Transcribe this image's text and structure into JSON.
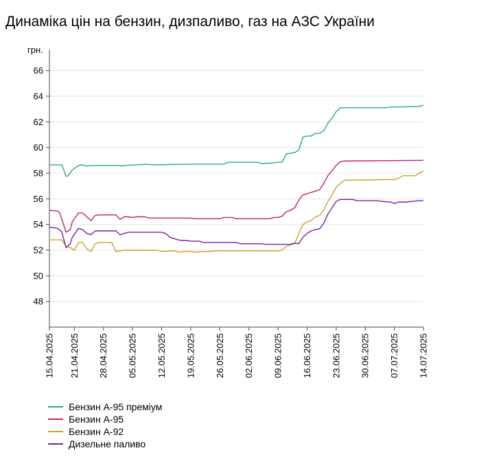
{
  "chart_data": {
    "type": "line",
    "title": "Динаміка цін на бензин, дизпаливо, газ на АЗС України",
    "ylabel": "грн.",
    "ylim": [
      46,
      67
    ],
    "yticks": [
      48,
      50,
      52,
      54,
      56,
      58,
      60,
      62,
      64,
      66
    ],
    "x_tick_labels": [
      "15.04.2025",
      "21.04.2025",
      "28.04.2025",
      "05.05.2025",
      "12.05.2025",
      "19.05.2025",
      "26.05.2025",
      "02.06.2025",
      "09.06.2025",
      "16.06.2025",
      "23.06.2025",
      "30.06.2025",
      "07.07.2025",
      "14.07.2025"
    ],
    "x_tick_days": [
      0,
      6,
      13,
      20,
      27,
      34,
      41,
      48,
      55,
      62,
      69,
      76,
      83,
      90
    ],
    "x_days_total": 90,
    "grid": "horizontal",
    "legend_position": "bottom-left",
    "series": [
      {
        "name": "Бензин А-95 преміум",
        "color": "#2ca58d",
        "points": [
          [
            0,
            58.65
          ],
          [
            3,
            58.65
          ],
          [
            4,
            57.75
          ],
          [
            4.5,
            57.8
          ],
          [
            5.5,
            58.25
          ],
          [
            7,
            58.6
          ],
          [
            8,
            58.65
          ],
          [
            9,
            58.55
          ],
          [
            10,
            58.6
          ],
          [
            17,
            58.6
          ],
          [
            17.5,
            58.55
          ],
          [
            18,
            58.6
          ],
          [
            21,
            58.65
          ],
          [
            23,
            58.7
          ],
          [
            25,
            58.65
          ],
          [
            33,
            58.7
          ],
          [
            42,
            58.7
          ],
          [
            43,
            58.85
          ],
          [
            50,
            58.85
          ],
          [
            51,
            58.75
          ],
          [
            54,
            58.8
          ],
          [
            55,
            58.85
          ],
          [
            56,
            58.85
          ],
          [
            57,
            59.5
          ],
          [
            59,
            59.6
          ],
          [
            60,
            59.8
          ],
          [
            61,
            60.8
          ],
          [
            62,
            60.9
          ],
          [
            63,
            60.9
          ],
          [
            64,
            61.1
          ],
          [
            65,
            61.1
          ],
          [
            66,
            61.3
          ],
          [
            67,
            61.9
          ],
          [
            68,
            62.3
          ],
          [
            69,
            62.8
          ],
          [
            70,
            63.1
          ],
          [
            71,
            63.1
          ],
          [
            81,
            63.1
          ],
          [
            82,
            63.15
          ],
          [
            89,
            63.2
          ],
          [
            90,
            63.3
          ]
        ]
      },
      {
        "name": "Бензин А-95",
        "color": "#c41e6e",
        "points": [
          [
            0,
            55.1
          ],
          [
            2,
            55.05
          ],
          [
            2.5,
            54.9
          ],
          [
            3.5,
            53.9
          ],
          [
            4,
            53.4
          ],
          [
            5,
            53.6
          ],
          [
            5.5,
            54.2
          ],
          [
            7,
            54.9
          ],
          [
            8,
            54.9
          ],
          [
            9,
            54.6
          ],
          [
            10,
            54.3
          ],
          [
            11,
            54.7
          ],
          [
            12,
            54.75
          ],
          [
            16,
            54.75
          ],
          [
            17,
            54.4
          ],
          [
            18,
            54.6
          ],
          [
            19,
            54.6
          ],
          [
            20,
            54.55
          ],
          [
            21,
            54.6
          ],
          [
            23,
            54.6
          ],
          [
            24,
            54.5
          ],
          [
            34,
            54.5
          ],
          [
            35,
            54.45
          ],
          [
            41,
            54.45
          ],
          [
            42,
            54.55
          ],
          [
            44,
            54.55
          ],
          [
            45,
            54.45
          ],
          [
            53,
            54.45
          ],
          [
            54,
            54.55
          ],
          [
            55,
            54.55
          ],
          [
            56,
            54.65
          ],
          [
            57,
            55.0
          ],
          [
            58,
            55.1
          ],
          [
            59,
            55.3
          ],
          [
            60,
            55.9
          ],
          [
            61,
            56.3
          ],
          [
            62,
            56.4
          ],
          [
            63,
            56.5
          ],
          [
            64,
            56.6
          ],
          [
            65,
            56.7
          ],
          [
            66,
            57.2
          ],
          [
            67,
            57.8
          ],
          [
            68,
            58.2
          ],
          [
            69,
            58.6
          ],
          [
            70,
            58.9
          ],
          [
            71,
            58.95
          ],
          [
            90,
            59.0
          ]
        ]
      },
      {
        "name": "Бензин А-92",
        "color": "#c9a227",
        "points": [
          [
            0,
            52.8
          ],
          [
            3,
            52.8
          ],
          [
            4,
            52.3
          ],
          [
            4.5,
            52.25
          ],
          [
            5,
            52.2
          ],
          [
            6,
            52.0
          ],
          [
            7,
            52.6
          ],
          [
            8,
            52.6
          ],
          [
            9,
            52.1
          ],
          [
            10,
            51.9
          ],
          [
            11,
            52.5
          ],
          [
            12,
            52.6
          ],
          [
            15,
            52.6
          ],
          [
            16,
            51.9
          ],
          [
            17,
            51.95
          ],
          [
            18,
            52.0
          ],
          [
            26,
            52.0
          ],
          [
            27,
            51.9
          ],
          [
            30,
            51.95
          ],
          [
            31,
            51.85
          ],
          [
            33,
            51.9
          ],
          [
            34,
            51.9
          ],
          [
            35,
            51.85
          ],
          [
            41,
            51.95
          ],
          [
            55,
            51.95
          ],
          [
            56,
            52.0
          ],
          [
            57,
            52.3
          ],
          [
            58,
            52.4
          ],
          [
            59,
            52.5
          ],
          [
            60,
            53.3
          ],
          [
            61,
            54.0
          ],
          [
            62,
            54.2
          ],
          [
            63,
            54.3
          ],
          [
            64,
            54.6
          ],
          [
            65,
            54.7
          ],
          [
            66,
            55.1
          ],
          [
            67,
            55.8
          ],
          [
            68,
            56.3
          ],
          [
            69,
            56.9
          ],
          [
            70,
            57.2
          ],
          [
            71,
            57.45
          ],
          [
            81,
            57.5
          ],
          [
            83,
            57.5
          ],
          [
            84,
            57.6
          ],
          [
            85,
            57.8
          ],
          [
            88,
            57.8
          ],
          [
            89,
            58.0
          ],
          [
            90,
            58.2
          ]
        ]
      },
      {
        "name": "Дизельне паливо",
        "color": "#7a1fa2",
        "points": [
          [
            0,
            53.8
          ],
          [
            2,
            53.7
          ],
          [
            3,
            53.4
          ],
          [
            3.5,
            52.8
          ],
          [
            4,
            52.2
          ],
          [
            5,
            52.5
          ],
          [
            5.5,
            53.0
          ],
          [
            7,
            53.7
          ],
          [
            8,
            53.6
          ],
          [
            9,
            53.3
          ],
          [
            10,
            53.2
          ],
          [
            11,
            53.5
          ],
          [
            12,
            53.5
          ],
          [
            16,
            53.5
          ],
          [
            17,
            53.2
          ],
          [
            18,
            53.3
          ],
          [
            19,
            53.4
          ],
          [
            27,
            53.4
          ],
          [
            28,
            53.3
          ],
          [
            29,
            53.0
          ],
          [
            31,
            52.8
          ],
          [
            32,
            52.75
          ],
          [
            33,
            52.75
          ],
          [
            34,
            52.7
          ],
          [
            36,
            52.7
          ],
          [
            37,
            52.6
          ],
          [
            45,
            52.6
          ],
          [
            46,
            52.5
          ],
          [
            51,
            52.5
          ],
          [
            52,
            52.45
          ],
          [
            58,
            52.45
          ],
          [
            59,
            52.55
          ],
          [
            60,
            52.5
          ],
          [
            61,
            53.0
          ],
          [
            62,
            53.3
          ],
          [
            63,
            53.5
          ],
          [
            64,
            53.6
          ],
          [
            65,
            53.65
          ],
          [
            66,
            54.1
          ],
          [
            67,
            54.8
          ],
          [
            68,
            55.3
          ],
          [
            69,
            55.8
          ],
          [
            70,
            55.95
          ],
          [
            71,
            55.95
          ],
          [
            73,
            55.95
          ],
          [
            74,
            55.85
          ],
          [
            79,
            55.85
          ],
          [
            80,
            55.8
          ],
          [
            82,
            55.75
          ],
          [
            83,
            55.65
          ],
          [
            84,
            55.75
          ],
          [
            86,
            55.75
          ],
          [
            87,
            55.8
          ],
          [
            89,
            55.85
          ],
          [
            90,
            55.85
          ]
        ]
      }
    ]
  }
}
